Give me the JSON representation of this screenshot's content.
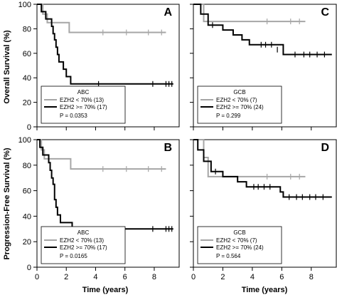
{
  "figure": {
    "ylabel_top": "Overall Survival (%)",
    "ylabel_bottom": "Progression-Free Survival (%)",
    "xlabel": "Time (years)"
  },
  "chart_data": [
    {
      "type": "line",
      "panel": "A",
      "subgroup": "ABC",
      "xlim": [
        0,
        9.7
      ],
      "ylim": [
        0,
        100
      ],
      "x_ticks": [
        0,
        2,
        4,
        6,
        8
      ],
      "y_ticks": [
        0,
        20,
        40,
        60,
        80,
        100
      ],
      "series": [
        {
          "name": "EZH2 < 70% (13)",
          "color": "#a6a6a6",
          "steps": [
            [
              0,
              100
            ],
            [
              0.4,
              92
            ],
            [
              0.7,
              85
            ],
            [
              2.2,
              77
            ],
            [
              8.8,
              77
            ]
          ],
          "censors": [
            [
              4.5,
              77
            ],
            [
              6.1,
              77
            ],
            [
              7.6,
              77
            ],
            [
              8.5,
              77
            ]
          ]
        },
        {
          "name": "EZH2 >= 70% (17)",
          "color": "#000000",
          "steps": [
            [
              0,
              100
            ],
            [
              0.3,
              94
            ],
            [
              0.6,
              88
            ],
            [
              1.0,
              82
            ],
            [
              1.1,
              76
            ],
            [
              1.2,
              71
            ],
            [
              1.3,
              65
            ],
            [
              1.4,
              59
            ],
            [
              1.5,
              53
            ],
            [
              1.8,
              47
            ],
            [
              2.0,
              41
            ],
            [
              2.3,
              35
            ],
            [
              9.3,
              35
            ]
          ],
          "censors": [
            [
              4.2,
              35
            ],
            [
              7.9,
              35
            ],
            [
              8.8,
              35
            ],
            [
              9.0,
              35
            ],
            [
              9.2,
              35
            ]
          ]
        }
      ],
      "legend": {
        "title": "ABC",
        "entries": [
          "EZH2 < 70% (13)",
          "EZH2 >= 70% (17)"
        ],
        "pvalue": "P = 0.0353"
      }
    },
    {
      "type": "line",
      "panel": "C",
      "subgroup": "GCB",
      "xlim": [
        0,
        9.7
      ],
      "ylim": [
        0,
        100
      ],
      "x_ticks": [
        0,
        2,
        4,
        6,
        8
      ],
      "y_ticks": [
        0,
        20,
        40,
        60,
        80,
        100
      ],
      "series": [
        {
          "name": "EZH2 < 70% (7)",
          "color": "#a6a6a6",
          "steps": [
            [
              0,
              100
            ],
            [
              0.7,
              86
            ],
            [
              7.6,
              86
            ]
          ],
          "censors": [
            [
              5.0,
              86
            ],
            [
              6.6,
              86
            ],
            [
              7.2,
              86
            ]
          ]
        },
        {
          "name": "EZH2 >= 70% (24)",
          "color": "#000000",
          "steps": [
            [
              0,
              100
            ],
            [
              0.5,
              92
            ],
            [
              1.0,
              83
            ],
            [
              2.0,
              79
            ],
            [
              2.7,
              75
            ],
            [
              3.3,
              71
            ],
            [
              3.8,
              67
            ],
            [
              6.1,
              59
            ],
            [
              9.4,
              59
            ]
          ],
          "censors": [
            [
              1.3,
              83
            ],
            [
              4.6,
              67
            ],
            [
              4.9,
              67
            ],
            [
              5.3,
              67
            ],
            [
              5.7,
              63
            ],
            [
              6.9,
              59
            ],
            [
              7.5,
              59
            ],
            [
              7.9,
              59
            ],
            [
              8.4,
              59
            ],
            [
              8.9,
              59
            ]
          ]
        }
      ],
      "legend": {
        "title": "GCB",
        "entries": [
          "EZH2 < 70% (7)",
          "EZH2 >= 70% (24)"
        ],
        "pvalue": "P = 0.299"
      }
    },
    {
      "type": "line",
      "panel": "B",
      "subgroup": "ABC",
      "xlim": [
        0,
        9.7
      ],
      "ylim": [
        0,
        100
      ],
      "x_ticks": [
        0,
        2,
        4,
        6,
        8
      ],
      "y_ticks": [
        0,
        20,
        40,
        60,
        80,
        100
      ],
      "series": [
        {
          "name": "EZH2 < 70% (13)",
          "color": "#a6a6a6",
          "steps": [
            [
              0,
              100
            ],
            [
              0.3,
              92
            ],
            [
              0.5,
              85
            ],
            [
              2.3,
              77
            ],
            [
              8.8,
              77
            ]
          ],
          "censors": [
            [
              4.5,
              77
            ],
            [
              6.1,
              77
            ],
            [
              7.6,
              77
            ],
            [
              8.5,
              77
            ]
          ]
        },
        {
          "name": "EZH2 >= 70% (17)",
          "color": "#000000",
          "steps": [
            [
              0,
              100
            ],
            [
              0.2,
              94
            ],
            [
              0.4,
              88
            ],
            [
              0.8,
              82
            ],
            [
              0.9,
              76
            ],
            [
              1.0,
              70
            ],
            [
              1.1,
              65
            ],
            [
              1.2,
              53
            ],
            [
              1.3,
              47
            ],
            [
              1.4,
              41
            ],
            [
              1.6,
              35
            ],
            [
              2.4,
              30
            ],
            [
              9.3,
              30
            ]
          ],
          "censors": [
            [
              7.9,
              30
            ],
            [
              8.8,
              30
            ],
            [
              9.0,
              30
            ],
            [
              9.2,
              30
            ]
          ]
        }
      ],
      "legend": {
        "title": "ABC",
        "entries": [
          "EZH2 < 70% (13)",
          "EZH2 >= 70% (17)"
        ],
        "pvalue": "P = 0.0165"
      }
    },
    {
      "type": "line",
      "panel": "D",
      "subgroup": "GCB",
      "xlim": [
        0,
        9.7
      ],
      "ylim": [
        0,
        100
      ],
      "x_ticks": [
        0,
        2,
        4,
        6,
        8
      ],
      "y_ticks": [
        0,
        20,
        40,
        60,
        80,
        100
      ],
      "series": [
        {
          "name": "EZH2 < 70% (7)",
          "color": "#a6a6a6",
          "steps": [
            [
              0,
              100
            ],
            [
              0.7,
              86
            ],
            [
              1.0,
              71
            ],
            [
              7.6,
              71
            ]
          ],
          "censors": [
            [
              5.0,
              71
            ],
            [
              6.6,
              71
            ],
            [
              7.2,
              71
            ]
          ]
        },
        {
          "name": "EZH2 >= 70% (24)",
          "color": "#000000",
          "steps": [
            [
              0,
              100
            ],
            [
              0.3,
              92
            ],
            [
              0.7,
              83
            ],
            [
              1.2,
              75
            ],
            [
              2.0,
              71
            ],
            [
              3.0,
              67
            ],
            [
              3.6,
              63
            ],
            [
              5.9,
              59
            ],
            [
              6.1,
              55
            ],
            [
              9.4,
              55
            ]
          ],
          "censors": [
            [
              1.5,
              75
            ],
            [
              4.1,
              63
            ],
            [
              4.4,
              63
            ],
            [
              4.8,
              63
            ],
            [
              5.2,
              63
            ],
            [
              6.5,
              55
            ],
            [
              7.0,
              55
            ],
            [
              7.4,
              55
            ],
            [
              7.9,
              55
            ],
            [
              8.3,
              55
            ],
            [
              8.8,
              55
            ]
          ]
        }
      ],
      "legend": {
        "title": "GCB",
        "entries": [
          "EZH2 < 70% (7)",
          "EZH2 >= 70% (24)"
        ],
        "pvalue": "P = 0.564"
      }
    }
  ]
}
